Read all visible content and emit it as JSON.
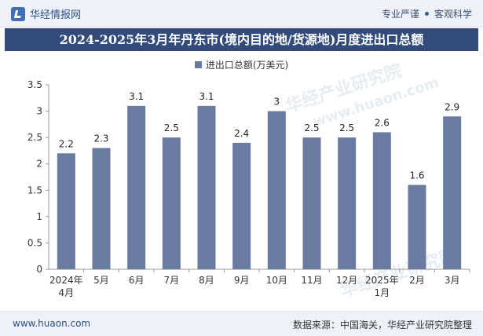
{
  "header": {
    "brand_name": "华经情报网",
    "tagline_left": "专业严谨",
    "tagline_right": "客观科学"
  },
  "chart_data": {
    "type": "bar",
    "title": "2024-2025年3月年丹东市(境内目的地/货源地)月度进出口总额",
    "series": [
      {
        "name": "进出口总额(万美元)",
        "values": [
          2.2,
          2.3,
          3.1,
          2.5,
          3.1,
          2.4,
          3,
          2.5,
          2.5,
          2.6,
          1.6,
          2.9
        ]
      }
    ],
    "categories": [
      "2024年4月",
      "5月",
      "6月",
      "7月",
      "8月",
      "9月",
      "10月",
      "11月",
      "12月",
      "2025年1月",
      "2月",
      "3月"
    ],
    "category_lines": [
      [
        "2024年",
        "4月"
      ],
      [
        "5月"
      ],
      [
        "6月"
      ],
      [
        "7月"
      ],
      [
        "8月"
      ],
      [
        "9月"
      ],
      [
        "10月"
      ],
      [
        "11月"
      ],
      [
        "12月"
      ],
      [
        "2025年",
        "1月"
      ],
      [
        "2月"
      ],
      [
        "3月"
      ]
    ],
    "value_labels": [
      "2.2",
      "2.3",
      "3.1",
      "2.5",
      "3.1",
      "2.4",
      "3",
      "2.5",
      "2.5",
      "2.6",
      "1.6",
      "2.9"
    ],
    "y_ticks": [
      "0",
      "0.5",
      "1",
      "1.5",
      "2",
      "2.5",
      "3",
      "3.5"
    ],
    "ylim": [
      0,
      3.5
    ],
    "xlabel": "",
    "ylabel": "",
    "legend_position": "top-center",
    "grid": false,
    "bar_color": "#6a7ba2"
  },
  "watermarks": [
    "华经产业研究院",
    "www.huaon.com",
    "华经产业研究院"
  ],
  "footer": {
    "url": "www.huaon.com",
    "source": "数据来源：中国海关，华经产业研究院整理"
  }
}
